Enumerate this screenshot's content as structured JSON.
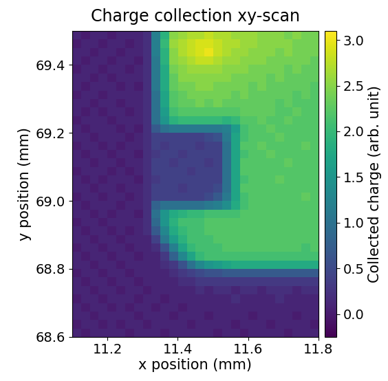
{
  "chart_data": {
    "type": "heatmap",
    "title": "Charge collection xy-scan",
    "x_label": "x position (mm)",
    "y_label": "y position (mm)",
    "xlim": [
      11.1,
      11.8
    ],
    "ylim": [
      68.6,
      69.5
    ],
    "xticks": [
      11.2,
      11.4,
      11.6,
      11.8
    ],
    "yticks": [
      68.6,
      68.8,
      69.0,
      69.2,
      69.4
    ],
    "colorbar_label": "Collected charge (arb. unit)",
    "colorbar_range": [
      -0.25,
      3.1
    ],
    "colorbar_ticks": [
      0.0,
      0.5,
      1.0,
      1.5,
      2.0,
      2.5,
      3.0
    ],
    "color": "viridis",
    "cells": [
      [
        0.1,
        0.0,
        0.1,
        0.1,
        0.0,
        0.1,
        0.1,
        0.1,
        0.2,
        1.2,
        1.9,
        2.5,
        2.6,
        2.7,
        2.7,
        2.8,
        2.7,
        2.7,
        2.6,
        2.6,
        2.6,
        2.5,
        2.5,
        2.5,
        2.4,
        2.5,
        2.4,
        2.4
      ],
      [
        0.0,
        0.1,
        0.1,
        0.0,
        0.1,
        0.1,
        0.0,
        0.1,
        0.2,
        1.2,
        2.0,
        2.6,
        2.7,
        2.8,
        2.9,
        2.9,
        2.8,
        2.7,
        2.7,
        2.6,
        2.6,
        2.5,
        2.5,
        2.5,
        2.5,
        2.4,
        2.4,
        2.4
      ],
      [
        0.1,
        0.1,
        0.0,
        0.1,
        0.1,
        0.0,
        0.1,
        0.1,
        0.2,
        1.2,
        1.9,
        2.5,
        2.7,
        2.8,
        2.9,
        3.0,
        2.8,
        2.7,
        2.6,
        2.6,
        2.5,
        2.5,
        2.5,
        2.4,
        2.5,
        2.4,
        2.4,
        2.4
      ],
      [
        0.1,
        0.0,
        0.1,
        0.1,
        0.0,
        0.1,
        0.1,
        0.0,
        0.2,
        1.1,
        1.9,
        2.5,
        2.6,
        2.7,
        2.8,
        2.8,
        2.7,
        2.6,
        2.6,
        2.5,
        2.5,
        2.5,
        2.4,
        2.4,
        2.4,
        2.4,
        2.4,
        2.3
      ],
      [
        0.0,
        0.1,
        0.1,
        0.0,
        0.1,
        0.1,
        0.0,
        0.1,
        0.2,
        1.1,
        1.8,
        2.4,
        2.5,
        2.6,
        2.6,
        2.6,
        2.6,
        2.5,
        2.5,
        2.5,
        2.4,
        2.4,
        2.4,
        2.4,
        2.3,
        2.4,
        2.3,
        2.3
      ],
      [
        0.1,
        0.1,
        0.0,
        0.1,
        0.0,
        0.1,
        0.1,
        0.1,
        0.2,
        1.1,
        1.8,
        2.3,
        2.5,
        2.5,
        2.5,
        2.5,
        2.5,
        2.5,
        2.4,
        2.4,
        2.4,
        2.4,
        2.3,
        2.4,
        2.3,
        2.3,
        2.3,
        2.3
      ],
      [
        0.1,
        0.0,
        0.1,
        0.1,
        0.1,
        0.0,
        0.1,
        0.0,
        0.2,
        1.1,
        1.8,
        2.3,
        2.4,
        2.4,
        2.5,
        2.5,
        2.4,
        2.4,
        2.4,
        2.4,
        2.3,
        2.4,
        2.3,
        2.3,
        2.3,
        2.3,
        2.3,
        2.2
      ],
      [
        0.0,
        0.1,
        0.1,
        0.0,
        0.1,
        0.1,
        0.1,
        0.1,
        0.2,
        1.0,
        1.7,
        2.2,
        2.3,
        2.4,
        2.4,
        2.4,
        2.4,
        2.4,
        2.3,
        2.4,
        2.3,
        2.3,
        2.3,
        2.3,
        2.3,
        2.2,
        2.3,
        2.2
      ],
      [
        0.1,
        0.1,
        0.0,
        0.1,
        0.1,
        0.0,
        0.1,
        0.1,
        0.2,
        1.0,
        1.7,
        2.2,
        2.3,
        2.3,
        2.4,
        2.3,
        2.4,
        2.3,
        2.3,
        2.3,
        2.3,
        2.3,
        2.3,
        2.2,
        2.3,
        2.2,
        2.2,
        2.2
      ],
      [
        0.1,
        0.0,
        0.1,
        0.0,
        0.1,
        0.1,
        0.0,
        0.1,
        0.2,
        1.0,
        1.6,
        2.1,
        2.2,
        2.2,
        2.2,
        2.2,
        2.2,
        2.2,
        2.2,
        2.3,
        2.3,
        2.3,
        2.3,
        2.2,
        2.2,
        2.3,
        2.2,
        2.2
      ],
      [
        0.0,
        0.1,
        0.1,
        0.1,
        0.0,
        0.1,
        0.1,
        0.1,
        0.2,
        1.0,
        1.5,
        1.9,
        2.0,
        2.0,
        2.0,
        2.0,
        2.0,
        1.9,
        2.0,
        2.2,
        2.2,
        2.3,
        2.2,
        2.2,
        2.3,
        2.2,
        2.2,
        2.2
      ],
      [
        0.1,
        0.0,
        0.1,
        0.1,
        0.1,
        0.0,
        0.1,
        0.0,
        0.2,
        0.7,
        1.0,
        1.1,
        1.1,
        1.1,
        1.1,
        1.1,
        1.1,
        1.2,
        1.6,
        2.1,
        2.2,
        2.2,
        2.3,
        2.2,
        2.2,
        2.2,
        2.2,
        2.2
      ],
      [
        0.1,
        0.1,
        0.0,
        0.1,
        0.1,
        0.1,
        0.0,
        0.1,
        0.2,
        0.4,
        0.4,
        0.4,
        0.4,
        0.4,
        0.4,
        0.5,
        0.6,
        1.1,
        1.7,
        2.1,
        2.2,
        2.2,
        2.2,
        2.3,
        2.2,
        2.2,
        2.2,
        2.2
      ],
      [
        0.0,
        0.1,
        0.1,
        0.0,
        0.1,
        0.0,
        0.1,
        0.1,
        0.2,
        0.4,
        0.3,
        0.4,
        0.4,
        0.4,
        0.3,
        0.4,
        0.4,
        1.0,
        1.7,
        2.2,
        2.2,
        2.3,
        2.2,
        2.2,
        2.2,
        2.2,
        2.3,
        2.2
      ],
      [
        0.1,
        0.0,
        0.1,
        0.1,
        0.0,
        0.1,
        0.1,
        0.0,
        0.2,
        0.3,
        0.4,
        0.4,
        0.3,
        0.4,
        0.4,
        0.4,
        0.4,
        1.0,
        1.7,
        2.1,
        2.2,
        2.2,
        2.3,
        2.2,
        2.2,
        2.2,
        2.2,
        2.2
      ],
      [
        0.1,
        0.1,
        0.0,
        0.1,
        0.1,
        0.0,
        0.1,
        0.1,
        0.2,
        0.4,
        0.4,
        0.3,
        0.4,
        0.4,
        0.4,
        0.3,
        0.4,
        1.0,
        1.7,
        2.2,
        2.2,
        2.2,
        2.2,
        2.2,
        2.3,
        2.2,
        2.2,
        2.2
      ],
      [
        0.0,
        0.1,
        0.1,
        0.1,
        0.0,
        0.1,
        0.0,
        0.1,
        0.2,
        0.4,
        0.4,
        0.4,
        0.4,
        0.3,
        0.4,
        0.4,
        0.4,
        1.0,
        1.7,
        2.2,
        2.2,
        2.2,
        2.2,
        2.2,
        2.2,
        2.2,
        2.2,
        2.2
      ],
      [
        0.1,
        0.0,
        0.1,
        0.0,
        0.1,
        0.1,
        0.1,
        0.0,
        0.2,
        0.3,
        0.4,
        0.4,
        0.4,
        0.4,
        0.4,
        0.4,
        0.4,
        1.0,
        1.7,
        2.1,
        2.2,
        2.2,
        2.2,
        2.3,
        2.2,
        2.2,
        2.2,
        2.2
      ],
      [
        0.1,
        0.1,
        0.0,
        0.1,
        0.1,
        0.0,
        0.1,
        0.1,
        0.2,
        0.4,
        0.4,
        0.4,
        0.3,
        0.4,
        0.4,
        0.4,
        0.5,
        1.0,
        1.7,
        2.2,
        2.2,
        2.2,
        2.2,
        2.2,
        2.2,
        2.2,
        2.2,
        2.2
      ],
      [
        0.0,
        0.1,
        0.1,
        0.0,
        0.1,
        0.1,
        0.0,
        0.1,
        0.2,
        0.4,
        0.4,
        0.4,
        0.4,
        0.4,
        0.4,
        0.5,
        0.7,
        1.1,
        1.7,
        2.1,
        2.2,
        2.2,
        2.2,
        2.2,
        2.2,
        2.2,
        2.3,
        2.2
      ],
      [
        0.1,
        0.0,
        0.1,
        0.1,
        0.1,
        0.0,
        0.1,
        0.1,
        0.2,
        0.8,
        1.0,
        1.0,
        1.0,
        1.0,
        1.0,
        1.1,
        1.2,
        1.4,
        1.8,
        2.1,
        2.2,
        2.2,
        2.2,
        2.2,
        2.2,
        2.2,
        2.2,
        2.2
      ],
      [
        0.1,
        0.1,
        0.0,
        0.1,
        0.0,
        0.1,
        0.1,
        0.0,
        0.2,
        1.0,
        1.5,
        1.8,
        1.9,
        2.0,
        2.0,
        2.1,
        2.1,
        2.1,
        2.1,
        2.2,
        2.2,
        2.2,
        2.2,
        2.2,
        2.2,
        2.2,
        2.2,
        2.2
      ],
      [
        0.0,
        0.1,
        0.1,
        0.0,
        0.1,
        0.1,
        0.1,
        0.1,
        0.2,
        0.9,
        1.5,
        1.9,
        2.1,
        2.1,
        2.1,
        2.2,
        2.2,
        2.2,
        2.2,
        2.2,
        2.2,
        2.2,
        2.2,
        2.2,
        2.2,
        2.2,
        2.2,
        2.2
      ],
      [
        0.1,
        0.0,
        0.1,
        0.1,
        0.0,
        0.1,
        0.0,
        0.1,
        0.2,
        0.7,
        1.3,
        1.8,
        2.0,
        2.1,
        2.1,
        2.2,
        2.2,
        2.2,
        2.2,
        2.2,
        2.2,
        2.2,
        2.2,
        2.2,
        2.2,
        2.2,
        2.2,
        2.2
      ],
      [
        0.1,
        0.1,
        0.0,
        0.1,
        0.1,
        0.0,
        0.1,
        0.1,
        0.1,
        0.4,
        1.1,
        1.6,
        1.9,
        2.1,
        2.1,
        2.1,
        2.2,
        2.2,
        2.2,
        2.2,
        2.2,
        2.2,
        2.2,
        2.2,
        2.2,
        2.2,
        2.2,
        2.2
      ],
      [
        0.0,
        0.1,
        0.1,
        0.0,
        0.1,
        0.1,
        0.0,
        0.1,
        0.1,
        0.2,
        0.6,
        1.2,
        1.7,
        2.0,
        2.1,
        2.1,
        2.1,
        2.2,
        2.2,
        2.2,
        2.2,
        2.2,
        2.2,
        2.2,
        2.2,
        2.2,
        2.1,
        2.2
      ],
      [
        0.1,
        0.0,
        0.1,
        0.1,
        0.0,
        0.1,
        0.1,
        0.0,
        0.1,
        0.1,
        0.3,
        0.8,
        1.3,
        1.7,
        2.0,
        2.1,
        2.1,
        2.1,
        2.1,
        2.1,
        2.1,
        2.1,
        2.1,
        2.1,
        2.1,
        2.1,
        2.1,
        2.1
      ],
      [
        0.1,
        0.1,
        0.0,
        0.1,
        0.1,
        0.0,
        0.1,
        0.1,
        0.1,
        0.1,
        0.2,
        0.3,
        0.6,
        1.0,
        1.3,
        1.5,
        1.6,
        1.7,
        1.8,
        1.8,
        1.8,
        1.8,
        1.8,
        1.8,
        1.8,
        1.8,
        1.8,
        1.8
      ],
      [
        0.0,
        0.1,
        0.1,
        0.0,
        0.1,
        0.1,
        0.0,
        0.1,
        0.1,
        0.1,
        0.1,
        0.2,
        0.3,
        0.4,
        0.5,
        0.6,
        0.6,
        0.7,
        0.7,
        0.7,
        0.7,
        0.7,
        0.7,
        0.7,
        0.7,
        0.7,
        0.7,
        0.7
      ],
      [
        0.1,
        0.0,
        0.1,
        0.1,
        0.0,
        0.1,
        0.1,
        0.0,
        0.1,
        0.1,
        0.1,
        0.1,
        0.2,
        0.2,
        0.3,
        0.3,
        0.3,
        0.3,
        0.3,
        0.3,
        0.3,
        0.3,
        0.3,
        0.3,
        0.3,
        0.3,
        0.3,
        0.3
      ],
      [
        0.1,
        0.1,
        0.0,
        0.1,
        0.1,
        0.0,
        0.1,
        0.1,
        0.0,
        0.1,
        0.1,
        0.1,
        0.1,
        0.1,
        0.2,
        0.1,
        0.2,
        0.2,
        0.1,
        0.2,
        0.2,
        0.1,
        0.2,
        0.2,
        0.2,
        0.1,
        0.2,
        0.2
      ],
      [
        0.0,
        0.1,
        0.1,
        0.0,
        0.1,
        0.1,
        0.1,
        0.0,
        0.1,
        0.1,
        0.0,
        0.1,
        0.1,
        0.1,
        0.1,
        0.1,
        0.1,
        0.1,
        0.2,
        0.1,
        0.1,
        0.1,
        0.1,
        0.2,
        0.1,
        0.1,
        0.1,
        0.1
      ],
      [
        0.1,
        0.0,
        0.1,
        0.1,
        0.0,
        0.1,
        0.0,
        0.1,
        0.1,
        0.0,
        0.1,
        0.1,
        0.0,
        0.1,
        0.1,
        0.1,
        0.1,
        0.1,
        0.1,
        0.1,
        0.1,
        0.1,
        0.1,
        0.1,
        0.1,
        0.1,
        0.1,
        0.1
      ],
      [
        0.1,
        0.1,
        0.0,
        0.1,
        0.1,
        0.1,
        0.1,
        0.0,
        0.1,
        0.1,
        0.1,
        0.0,
        0.1,
        0.1,
        0.1,
        0.0,
        0.1,
        0.1,
        0.1,
        0.1,
        0.0,
        0.1,
        0.1,
        0.1,
        0.1,
        0.0,
        0.1,
        0.1
      ],
      [
        0.0,
        0.1,
        0.1,
        0.0,
        0.1,
        0.0,
        0.1,
        0.1,
        0.0,
        0.1,
        0.1,
        0.1,
        0.1,
        0.0,
        0.1,
        0.1,
        0.1,
        0.1,
        0.0,
        0.1,
        0.1,
        0.1,
        0.0,
        0.1,
        0.1,
        0.1,
        0.1,
        0.0
      ],
      [
        0.1,
        0.0,
        0.1,
        0.1,
        0.1,
        0.1,
        0.0,
        0.1,
        0.1,
        0.1,
        0.0,
        0.1,
        0.1,
        0.1,
        0.1,
        0.1,
        0.0,
        0.1,
        0.1,
        0.0,
        0.1,
        0.1,
        0.1,
        0.1,
        0.0,
        0.1,
        0.1,
        0.1
      ]
    ]
  }
}
